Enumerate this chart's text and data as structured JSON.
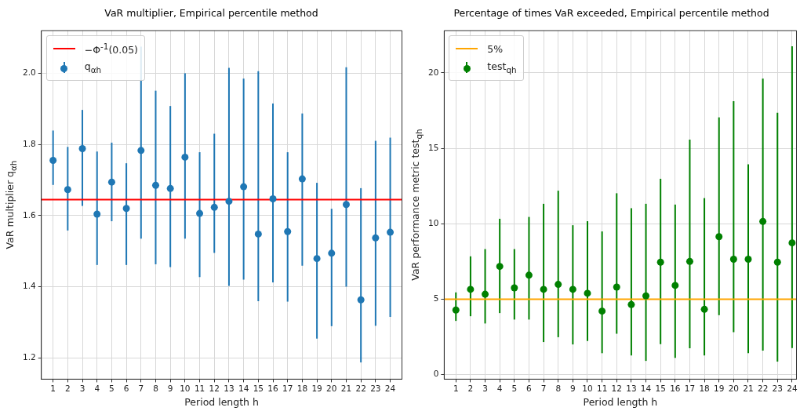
{
  "chart_data": [
    {
      "type": "scatter",
      "title": "VaR multiplier, Empirical percentile method",
      "xlabel": "Period length h",
      "ylabel": "VaR multiplier q$_{αh}$",
      "x": [
        1,
        2,
        3,
        4,
        5,
        6,
        7,
        8,
        9,
        10,
        11,
        12,
        13,
        14,
        15,
        16,
        17,
        18,
        19,
        20,
        21,
        22,
        23,
        24
      ],
      "xlim": [
        0.2,
        24.8
      ],
      "xticks": [
        1,
        2,
        3,
        4,
        5,
        6,
        7,
        8,
        9,
        10,
        11,
        12,
        13,
        14,
        15,
        16,
        17,
        18,
        19,
        20,
        21,
        22,
        23,
        24
      ],
      "series": [
        {
          "name": "q$_{αh}$",
          "color": "#1f77b4",
          "values": [
            1.755,
            1.673,
            1.788,
            1.604,
            1.694,
            1.62,
            1.783,
            1.685,
            1.676,
            1.764,
            1.606,
            1.623,
            1.64,
            1.681,
            1.548,
            1.647,
            1.555,
            1.703,
            1.479,
            1.494,
            1.631,
            1.363,
            1.537,
            1.553
          ],
          "errors": [
            [
              1.686,
              1.839
            ],
            [
              1.558,
              1.793
            ],
            [
              1.627,
              1.897
            ],
            [
              1.461,
              1.78
            ],
            [
              1.584,
              1.805
            ],
            [
              1.461,
              1.747
            ],
            [
              1.535,
              2.075
            ],
            [
              1.463,
              1.951
            ],
            [
              1.455,
              1.908
            ],
            [
              1.535,
              2.0
            ],
            [
              1.427,
              1.778
            ],
            [
              1.495,
              1.83
            ],
            [
              1.402,
              2.015
            ],
            [
              1.42,
              1.985
            ],
            [
              1.359,
              2.006
            ],
            [
              1.412,
              1.915
            ],
            [
              1.358,
              1.778
            ],
            [
              1.459,
              1.887
            ],
            [
              1.254,
              1.692
            ],
            [
              1.289,
              1.619
            ],
            [
              1.4,
              2.017
            ],
            [
              1.187,
              1.677
            ],
            [
              1.29,
              1.81
            ],
            [
              1.315,
              1.819
            ]
          ]
        }
      ],
      "ylim": [
        1.14,
        2.12
      ],
      "yticks": [
        1.2,
        1.4,
        1.6,
        1.8,
        {
          "value": 2,
          "label": "2.0"
        }
      ],
      "ref_lines": [
        {
          "axis": "y",
          "value": 1.645,
          "label": "−Φ$^{-1}$(0.05)",
          "color": "#ff0000"
        }
      ],
      "grid": true,
      "legend": "top left",
      "marker": "circle"
    },
    {
      "type": "scatter",
      "title": "Percentage of times VaR exceeded, Empirical percentile method",
      "xlabel": "Period length h",
      "ylabel": "VaR performance metric test$_{qh}$",
      "x": [
        1,
        2,
        3,
        4,
        5,
        6,
        7,
        8,
        9,
        10,
        11,
        12,
        13,
        14,
        15,
        16,
        17,
        18,
        19,
        20,
        21,
        22,
        23,
        24
      ],
      "xlim": [
        0.2,
        24.3
      ],
      "xticks": [
        1,
        2,
        3,
        4,
        5,
        6,
        7,
        8,
        9,
        10,
        11,
        12,
        13,
        14,
        15,
        16,
        17,
        18,
        19,
        20,
        21,
        22,
        23,
        24
      ],
      "series": [
        {
          "name": "test$_{qh}$",
          "color": "#008000",
          "values": [
            4.28,
            5.65,
            5.33,
            7.17,
            5.75,
            6.59,
            5.65,
            5.98,
            5.65,
            5.39,
            4.21,
            5.8,
            4.64,
            5.22,
            7.45,
            5.91,
            7.5,
            4.33,
            9.14,
            7.65,
            7.65,
            10.15,
            7.45,
            8.73
          ],
          "errors": [
            [
              3.56,
              5.45
            ],
            [
              3.87,
              7.84
            ],
            [
              3.39,
              8.32
            ],
            [
              4.08,
              10.33
            ],
            [
              3.65,
              8.32
            ],
            [
              3.65,
              10.45
            ],
            [
              2.16,
              11.32
            ],
            [
              2.48,
              12.19
            ],
            [
              2.0,
              9.9
            ],
            [
              2.23,
              10.17
            ],
            [
              1.42,
              9.49
            ],
            [
              2.71,
              12.02
            ],
            [
              1.27,
              11.03
            ],
            [
              0.91,
              11.32
            ],
            [
              2.02,
              12.98
            ],
            [
              1.11,
              11.27
            ],
            [
              1.75,
              15.58
            ],
            [
              1.27,
              11.7
            ],
            [
              3.94,
              17.05
            ],
            [
              2.81,
              18.12
            ],
            [
              1.42,
              13.94
            ],
            [
              1.59,
              19.61
            ],
            [
              0.86,
              17.36
            ],
            [
              1.76,
              21.76
            ]
          ]
        }
      ],
      "ylim": [
        -0.3,
        22.8
      ],
      "yticks": [
        0,
        5,
        10,
        15,
        20
      ],
      "ref_lines": [
        {
          "axis": "y",
          "value": 5,
          "label": "5%",
          "color": "#ffa500"
        }
      ],
      "grid": true,
      "legend": "top left",
      "marker": "circle"
    }
  ]
}
